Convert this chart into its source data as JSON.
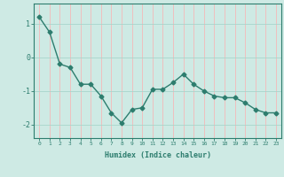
{
  "x": [
    0,
    1,
    2,
    3,
    4,
    5,
    6,
    7,
    8,
    9,
    10,
    11,
    12,
    13,
    14,
    15,
    16,
    17,
    18,
    19,
    20,
    21,
    22,
    23
  ],
  "y": [
    1.2,
    0.75,
    -0.2,
    -0.3,
    -0.8,
    -0.8,
    -1.15,
    -1.65,
    -1.95,
    -1.55,
    -1.5,
    -0.95,
    -0.95,
    -0.75,
    -0.5,
    -0.8,
    -1.0,
    -1.15,
    -1.2,
    -1.2,
    -1.35,
    -1.55,
    -1.65,
    -1.65
  ],
  "line_color": "#2d7d6e",
  "marker": "D",
  "markersize": 2.5,
  "linewidth": 1.0,
  "xlabel": "Humidex (Indice chaleur)",
  "xlim": [
    -0.5,
    23.5
  ],
  "ylim": [
    -2.4,
    1.6
  ],
  "yticks": [
    -2,
    -1,
    0,
    1
  ],
  "xticks": [
    0,
    1,
    2,
    3,
    4,
    5,
    6,
    7,
    8,
    9,
    10,
    11,
    12,
    13,
    14,
    15,
    16,
    17,
    18,
    19,
    20,
    21,
    22,
    23
  ],
  "bg_color": "#ceeae4",
  "grid_color": "#f5b8b8",
  "tick_color": "#2d7d6e",
  "label_color": "#2d7d6e",
  "axis_color": "#2d7d6e"
}
